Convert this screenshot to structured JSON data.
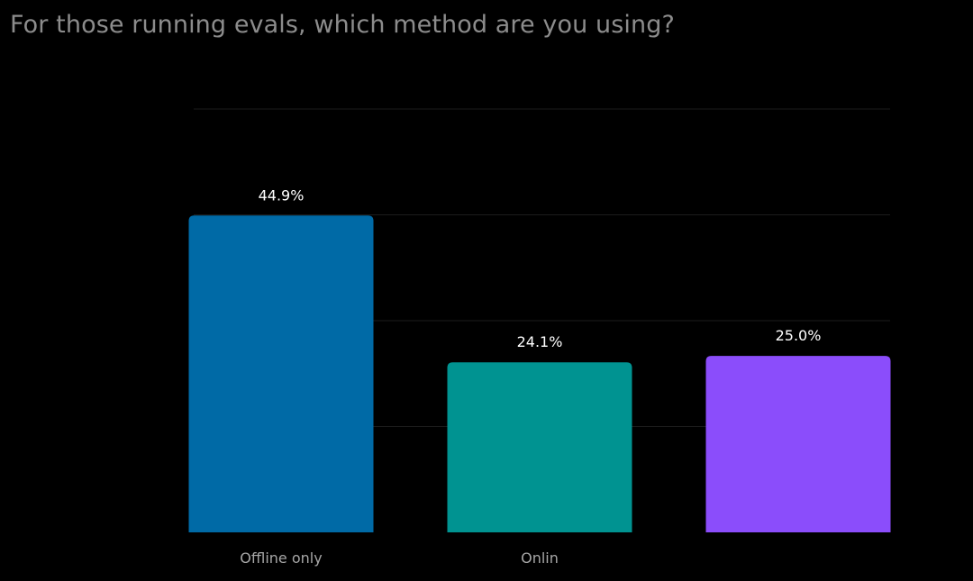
{
  "chart_data": {
    "type": "bar",
    "title": "For those running evals, which method are you using?",
    "categories": [
      "Offline only",
      "Onlin",
      ""
    ],
    "values": [
      44.9,
      24.1,
      25.0
    ],
    "value_labels": [
      "44.9%",
      "24.1%",
      "25.0%"
    ],
    "colors": [
      "#006aa6",
      "#009391",
      "#8b4dfb"
    ],
    "ylim": [
      0,
      60
    ],
    "grid": true,
    "legend": "none"
  }
}
